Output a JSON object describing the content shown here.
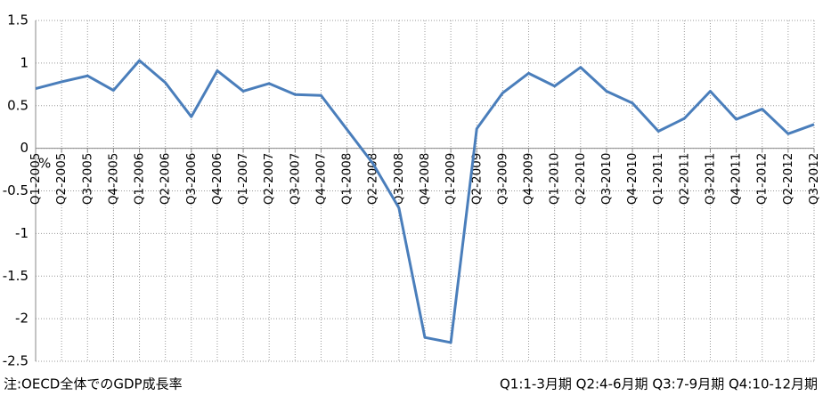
{
  "chart_data": {
    "type": "line",
    "y_label": "%",
    "annotations": [
      "注:OECD全体でのGDP成長率",
      "Q1:1-3月期  Q2:4-6月期  Q3:7-9月期  Q4:10-12月期"
    ],
    "categories": [
      "Q1-2005",
      "Q2-2005",
      "Q3-2005",
      "Q4-2005",
      "Q1-2006",
      "Q2-2006",
      "Q3-2006",
      "Q4-2006",
      "Q1-2007",
      "Q2-2007",
      "Q3-2007",
      "Q4-2007",
      "Q1-2008",
      "Q2-2008",
      "Q3-2008",
      "Q4-2008",
      "Q1-2009",
      "Q2-2009",
      "Q3-2009",
      "Q4-2009",
      "Q1-2010",
      "Q2-2010",
      "Q3-2010",
      "Q4-2010",
      "Q1-2011",
      "Q2-2011",
      "Q3-2011",
      "Q4-2011",
      "Q1-2012",
      "Q2-2012",
      "Q3-2012"
    ],
    "values": [
      0.7,
      0.78,
      0.85,
      0.68,
      1.03,
      0.77,
      0.37,
      0.91,
      0.67,
      0.76,
      0.63,
      0.62,
      0.22,
      -0.18,
      -0.7,
      -2.22,
      -2.28,
      0.23,
      0.65,
      0.88,
      0.73,
      0.95,
      0.67,
      0.53,
      0.2,
      0.35,
      0.67,
      0.34,
      0.46,
      0.17,
      0.28
    ],
    "color": "#4a7ebb",
    "ylim": [
      -2.5,
      1.5
    ],
    "yticks": [
      1.5,
      1,
      0.5,
      0,
      -0.5,
      -1,
      -1.5,
      -2,
      -2.5
    ],
    "grid": true
  }
}
